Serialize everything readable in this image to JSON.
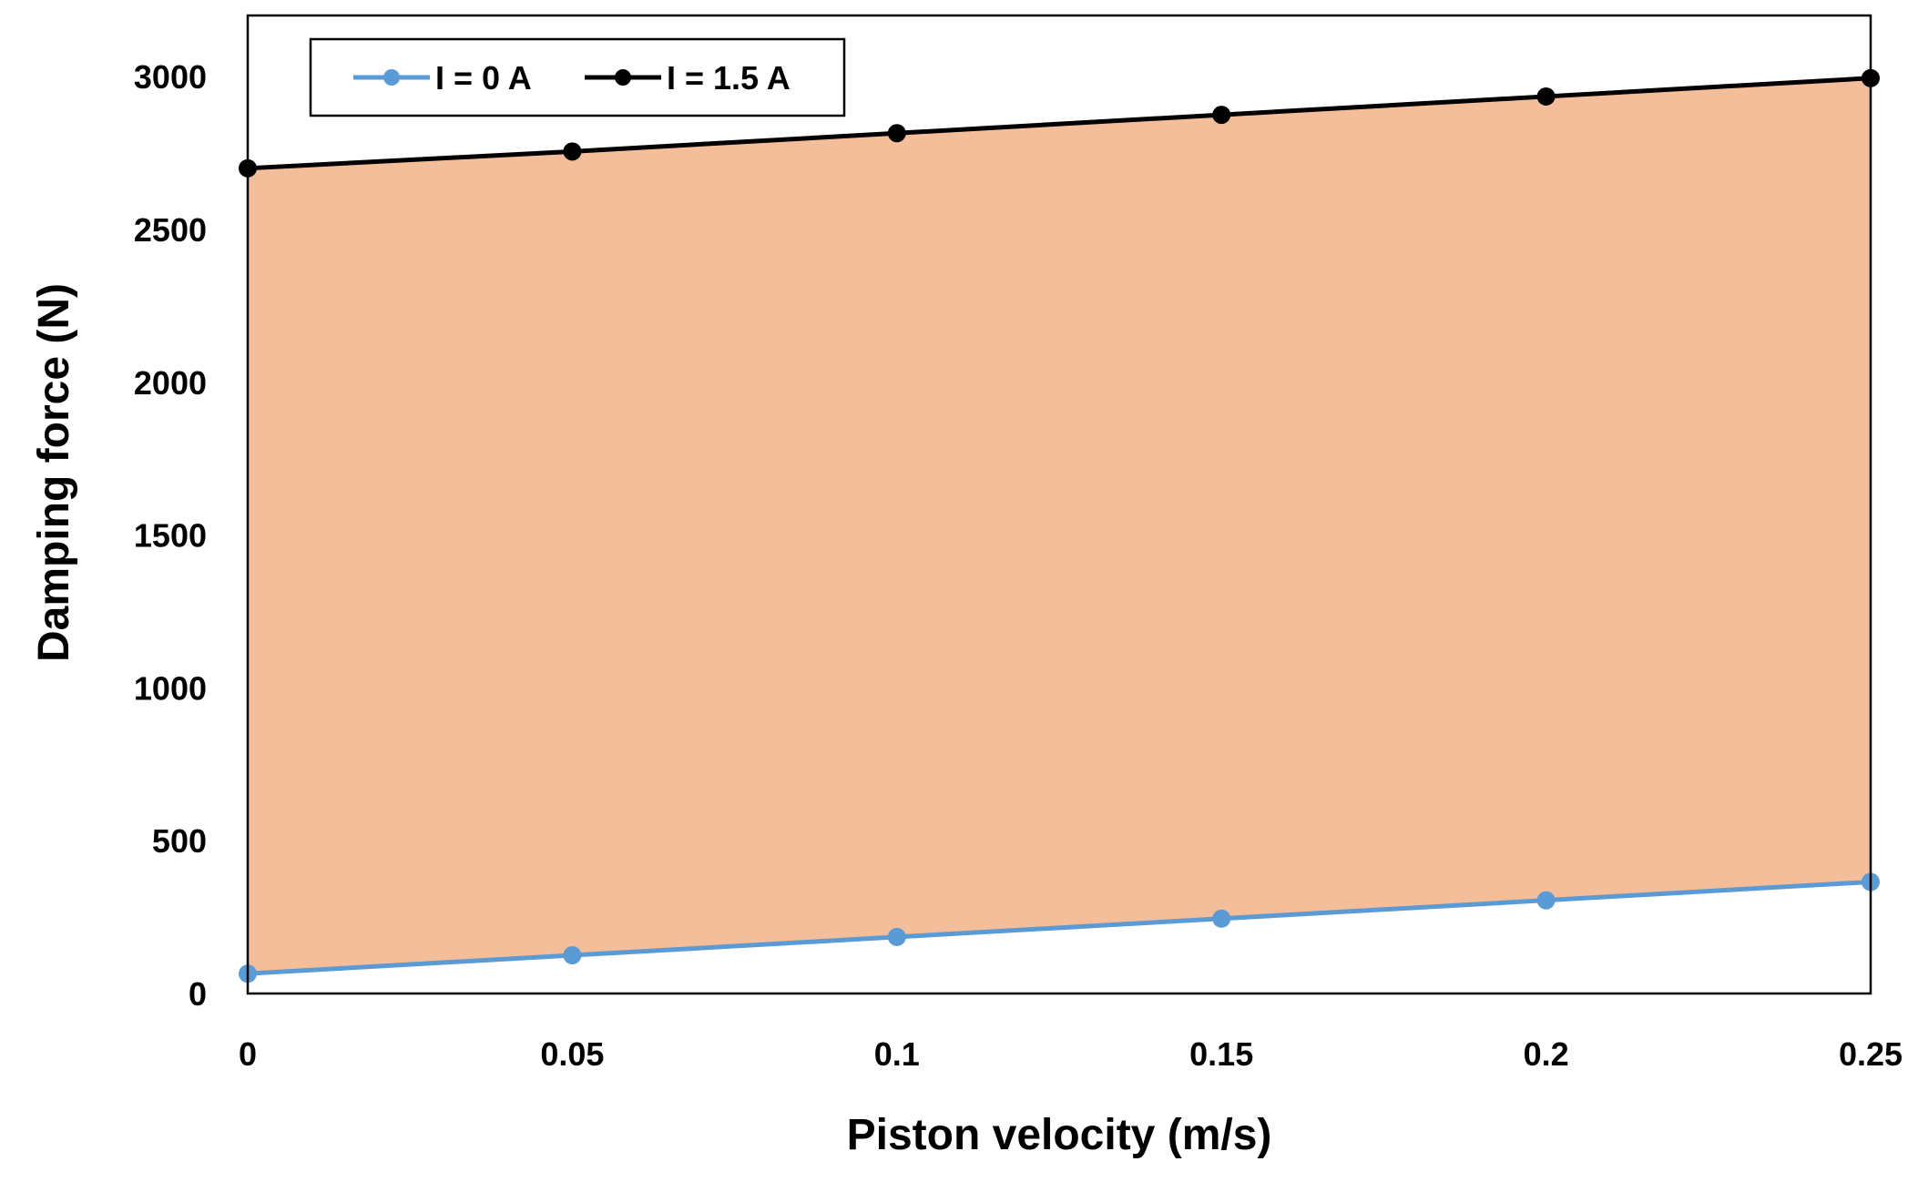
{
  "chart_data": {
    "type": "area",
    "title": "",
    "xlabel": "Piston velocity (m/s)",
    "ylabel": "Damping force (N)",
    "x": [
      0,
      0.05,
      0.1,
      0.15,
      0.2,
      0.25
    ],
    "x_tick_labels": [
      "0",
      "0.05",
      "0.1",
      "0.15",
      "0.2",
      "0.25"
    ],
    "y_tick_values": [
      0,
      500,
      1000,
      1500,
      2000,
      2500,
      3000
    ],
    "y_tick_labels": [
      "0",
      "500",
      "1000",
      "1500",
      "2000",
      "2500",
      "3000"
    ],
    "xlim": [
      0,
      0.25
    ],
    "ylim": [
      0,
      3200
    ],
    "grid": false,
    "legend_position": "top-left",
    "series": [
      {
        "name": "I = 0 A",
        "values": [
          65,
          125,
          185,
          245,
          305,
          365
        ],
        "color": "#5B9BD5"
      },
      {
        "name": "I = 1.5 A",
        "values": [
          2700,
          2755,
          2815,
          2875,
          2935,
          2995
        ],
        "color": "#000000"
      }
    ],
    "fill_between": {
      "lower_series": "I = 0 A",
      "upper_series": "I = 1.5 A",
      "color": "#F4BE9A"
    }
  }
}
